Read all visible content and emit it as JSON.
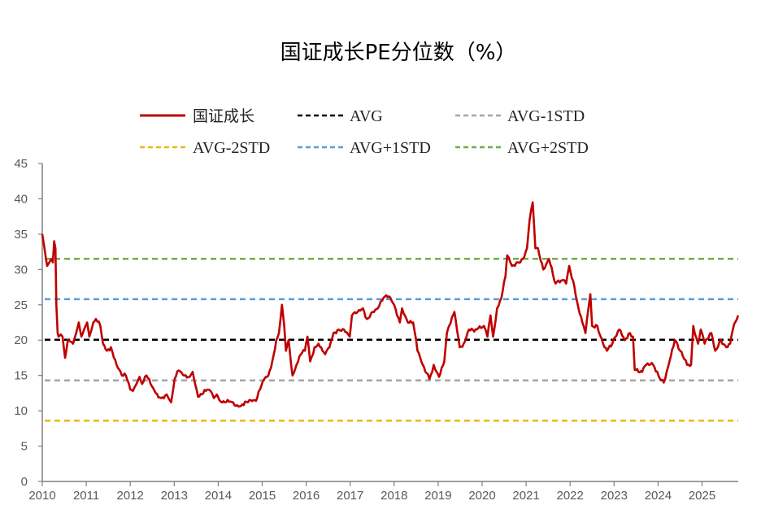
{
  "chart_data": {
    "type": "line",
    "title": "国证成长PE分位数（%）",
    "xlabel": "",
    "ylabel": "",
    "xlim": [
      2010,
      2025.85
    ],
    "ylim": [
      0,
      45
    ],
    "y_ticks": [
      0,
      5,
      10,
      15,
      20,
      25,
      30,
      35,
      40,
      45
    ],
    "x_ticks": [
      "2010",
      "2011",
      "2012",
      "2013",
      "2014",
      "2015",
      "2016",
      "2017",
      "2018",
      "2019",
      "2020",
      "2021",
      "2022",
      "2023",
      "2024",
      "2025"
    ],
    "grid": false,
    "legend_placement": "top",
    "series": [
      {
        "name": "国证成长",
        "color": "#C00000",
        "style": "solid",
        "x": [
          2010.0,
          2010.05,
          2010.11,
          2010.16,
          2010.21,
          2010.24,
          2010.27,
          2010.3,
          2010.32,
          2010.35,
          2010.37,
          2010.42,
          2010.46,
          2010.52,
          2010.58,
          2010.64,
          2010.7,
          2010.77,
          2010.83,
          2010.89,
          2010.95,
          2011.02,
          2011.07,
          2011.12,
          2011.16,
          2011.22,
          2011.32,
          2011.38,
          2011.47,
          2011.56,
          2011.69,
          2011.81,
          2011.9,
          2012.0,
          2012.06,
          2012.14,
          2012.21,
          2012.27,
          2012.37,
          2012.49,
          2012.58,
          2012.7,
          2012.83,
          2012.93,
          2013.01,
          2013.1,
          2013.23,
          2013.35,
          2013.42,
          2013.54,
          2013.63,
          2013.75,
          2013.83,
          2013.9,
          2013.97,
          2014.06,
          2014.15,
          2014.28,
          2014.4,
          2014.52,
          2014.61,
          2014.74,
          2014.86,
          2014.95,
          2015.05,
          2015.14,
          2015.23,
          2015.32,
          2015.38,
          2015.45,
          2015.5,
          2015.54,
          2015.6,
          2015.69,
          2015.78,
          2015.88,
          2015.97,
          2016.03,
          2016.09,
          2016.19,
          2016.28,
          2016.37,
          2016.43,
          2016.53,
          2016.62,
          2016.74,
          2016.86,
          2016.99,
          2017.04,
          2017.17,
          2017.29,
          2017.38,
          2017.51,
          2017.63,
          2017.76,
          2017.88,
          2018.0,
          2018.13,
          2018.18,
          2018.31,
          2018.43,
          2018.53,
          2018.65,
          2018.8,
          2018.9,
          2019.02,
          2019.14,
          2019.2,
          2019.37,
          2019.49,
          2019.58,
          2019.7,
          2019.88,
          2020.04,
          2020.12,
          2020.19,
          2020.25,
          2020.34,
          2020.44,
          2020.53,
          2020.57,
          2020.68,
          2020.81,
          2020.93,
          2021.02,
          2021.08,
          2021.15,
          2021.21,
          2021.27,
          2021.39,
          2021.52,
          2021.67,
          2021.83,
          2021.91,
          2021.98,
          2022.1,
          2022.19,
          2022.28,
          2022.35,
          2022.46,
          2022.5,
          2022.62,
          2022.75,
          2022.84,
          2022.96,
          2023.12,
          2023.24,
          2023.36,
          2023.43,
          2023.47,
          2023.64,
          2023.73,
          2023.89,
          2024.01,
          2024.13,
          2024.26,
          2024.38,
          2024.5,
          2024.66,
          2024.75,
          2024.8,
          2024.91,
          2024.97,
          2025.06,
          2025.21,
          2025.3,
          2025.43,
          2025.55,
          2025.64,
          2025.7,
          2025.82
        ],
        "y": [
          35,
          33,
          30.5,
          31,
          31.5,
          31,
          34,
          33,
          25,
          21,
          20.5,
          20.8,
          20.5,
          17.5,
          20,
          19.8,
          19.5,
          21,
          22.5,
          20.5,
          21.5,
          22.5,
          20.5,
          21.5,
          22.5,
          23,
          22,
          19.5,
          18.5,
          19,
          16.5,
          15,
          15,
          13,
          12.8,
          13.8,
          14.8,
          13.8,
          15,
          13.5,
          12.5,
          11.8,
          12.3,
          11.2,
          14.5,
          15.7,
          15,
          14.8,
          15.5,
          12,
          12.3,
          13,
          12.8,
          11.8,
          12.3,
          11.3,
          11.2,
          11.3,
          10.7,
          10.7,
          11.3,
          11.5,
          11.4,
          13,
          14.5,
          15,
          17,
          20,
          21,
          25,
          22,
          18.5,
          20,
          15,
          16.5,
          18,
          18.5,
          20.5,
          17,
          19,
          19.5,
          18.5,
          18,
          19,
          21,
          21.5,
          21.5,
          20.5,
          23.5,
          24,
          24.5,
          23,
          24,
          24.5,
          26,
          26.2,
          25,
          22.5,
          24.5,
          22.5,
          22.5,
          18.5,
          16.5,
          14.5,
          16.5,
          14.8,
          17,
          21,
          24,
          19,
          19.5,
          21.5,
          21.5,
          22,
          20.5,
          23.5,
          20.5,
          24.5,
          26,
          29,
          32,
          30.5,
          31,
          31.5,
          33,
          37,
          39.5,
          33,
          33,
          30,
          31.5,
          28,
          28.5,
          28,
          30.5,
          27.5,
          24.5,
          22.5,
          21,
          26.5,
          22,
          22,
          19.5,
          18.5,
          19.5,
          21.5,
          20,
          21,
          20.5,
          15.8,
          15.5,
          16.5,
          16.5,
          15,
          14,
          17,
          20,
          18.5,
          16.5,
          16.5,
          22,
          19.5,
          21.5,
          19.5,
          21,
          18.5,
          20,
          19,
          19.5,
          21.5,
          23.5
        ]
      },
      {
        "name": "AVG",
        "color": "#000000",
        "style": "dashed",
        "value": 20.05
      },
      {
        "name": "AVG-1STD",
        "color": "#A5A5A5",
        "style": "dashed",
        "value": 14.3
      },
      {
        "name": "AVG-2STD",
        "color": "#E8B90E",
        "style": "dashed",
        "value": 8.6
      },
      {
        "name": "AVG+1STD",
        "color": "#5B9BD5",
        "style": "dashed",
        "value": 25.8
      },
      {
        "name": "AVG+2STD",
        "color": "#70AD47",
        "style": "dashed",
        "value": 31.5
      }
    ]
  }
}
